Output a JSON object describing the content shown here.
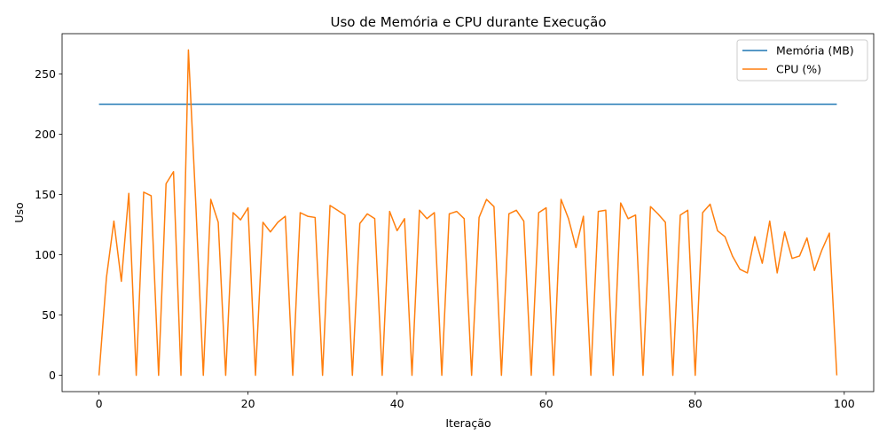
{
  "chart_data": {
    "type": "line",
    "title": "Uso de Memória e CPU durante Execução",
    "xlabel": "Iteração",
    "ylabel": "Uso",
    "xlim": [
      -4.95,
      103.95
    ],
    "ylim": [
      -13.5,
      283.5
    ],
    "xticks": [
      0,
      20,
      40,
      60,
      80,
      100
    ],
    "yticks": [
      0,
      50,
      100,
      150,
      200,
      250
    ],
    "grid": false,
    "legend_position": "upper right",
    "x": [
      0,
      1,
      2,
      3,
      4,
      5,
      6,
      7,
      8,
      9,
      10,
      11,
      12,
      13,
      14,
      15,
      16,
      17,
      18,
      19,
      20,
      21,
      22,
      23,
      24,
      25,
      26,
      27,
      28,
      29,
      30,
      31,
      32,
      33,
      34,
      35,
      36,
      37,
      38,
      39,
      40,
      41,
      42,
      43,
      44,
      45,
      46,
      47,
      48,
      49,
      50,
      51,
      52,
      53,
      54,
      55,
      56,
      57,
      58,
      59,
      60,
      61,
      62,
      63,
      64,
      65,
      66,
      67,
      68,
      69,
      70,
      71,
      72,
      73,
      74,
      75,
      76,
      77,
      78,
      79,
      80,
      81,
      82,
      83,
      84,
      85,
      86,
      87,
      88,
      89,
      90,
      91,
      92,
      93,
      94,
      95,
      96,
      97,
      98,
      99
    ],
    "series": [
      {
        "name": "Memória (MB)",
        "color": "#1f77b4",
        "values": [
          225,
          225,
          225,
          225,
          225,
          225,
          225,
          225,
          225,
          225,
          225,
          225,
          225,
          225,
          225,
          225,
          225,
          225,
          225,
          225,
          225,
          225,
          225,
          225,
          225,
          225,
          225,
          225,
          225,
          225,
          225,
          225,
          225,
          225,
          225,
          225,
          225,
          225,
          225,
          225,
          225,
          225,
          225,
          225,
          225,
          225,
          225,
          225,
          225,
          225,
          225,
          225,
          225,
          225,
          225,
          225,
          225,
          225,
          225,
          225,
          225,
          225,
          225,
          225,
          225,
          225,
          225,
          225,
          225,
          225,
          225,
          225,
          225,
          225,
          225,
          225,
          225,
          225,
          225,
          225,
          225,
          225,
          225,
          225,
          225,
          225,
          225,
          225,
          225,
          225,
          225,
          225,
          225,
          225,
          225,
          225,
          225,
          225,
          225,
          225
        ]
      },
      {
        "name": "CPU (%)",
        "color": "#ff7f0e",
        "values": [
          0,
          81,
          128,
          78,
          151,
          0,
          152,
          149,
          0,
          159,
          169,
          0,
          270,
          141,
          0,
          146,
          127,
          0,
          135,
          129,
          139,
          0,
          127,
          119,
          127,
          132,
          0,
          135,
          132,
          131,
          0,
          141,
          137,
          133,
          0,
          126,
          134,
          130,
          0,
          136,
          120,
          130,
          0,
          137,
          130,
          135,
          0,
          134,
          136,
          130,
          0,
          131,
          146,
          140,
          0,
          134,
          137,
          128,
          0,
          135,
          139,
          0,
          146,
          130,
          106,
          132,
          0,
          136,
          137,
          0,
          143,
          130,
          133,
          0,
          140,
          134,
          127,
          0,
          133,
          137,
          0,
          135,
          142,
          120,
          115,
          99,
          88,
          85,
          115,
          93,
          128,
          85,
          119,
          97,
          99,
          114,
          87,
          104,
          118,
          0
        ]
      }
    ]
  }
}
